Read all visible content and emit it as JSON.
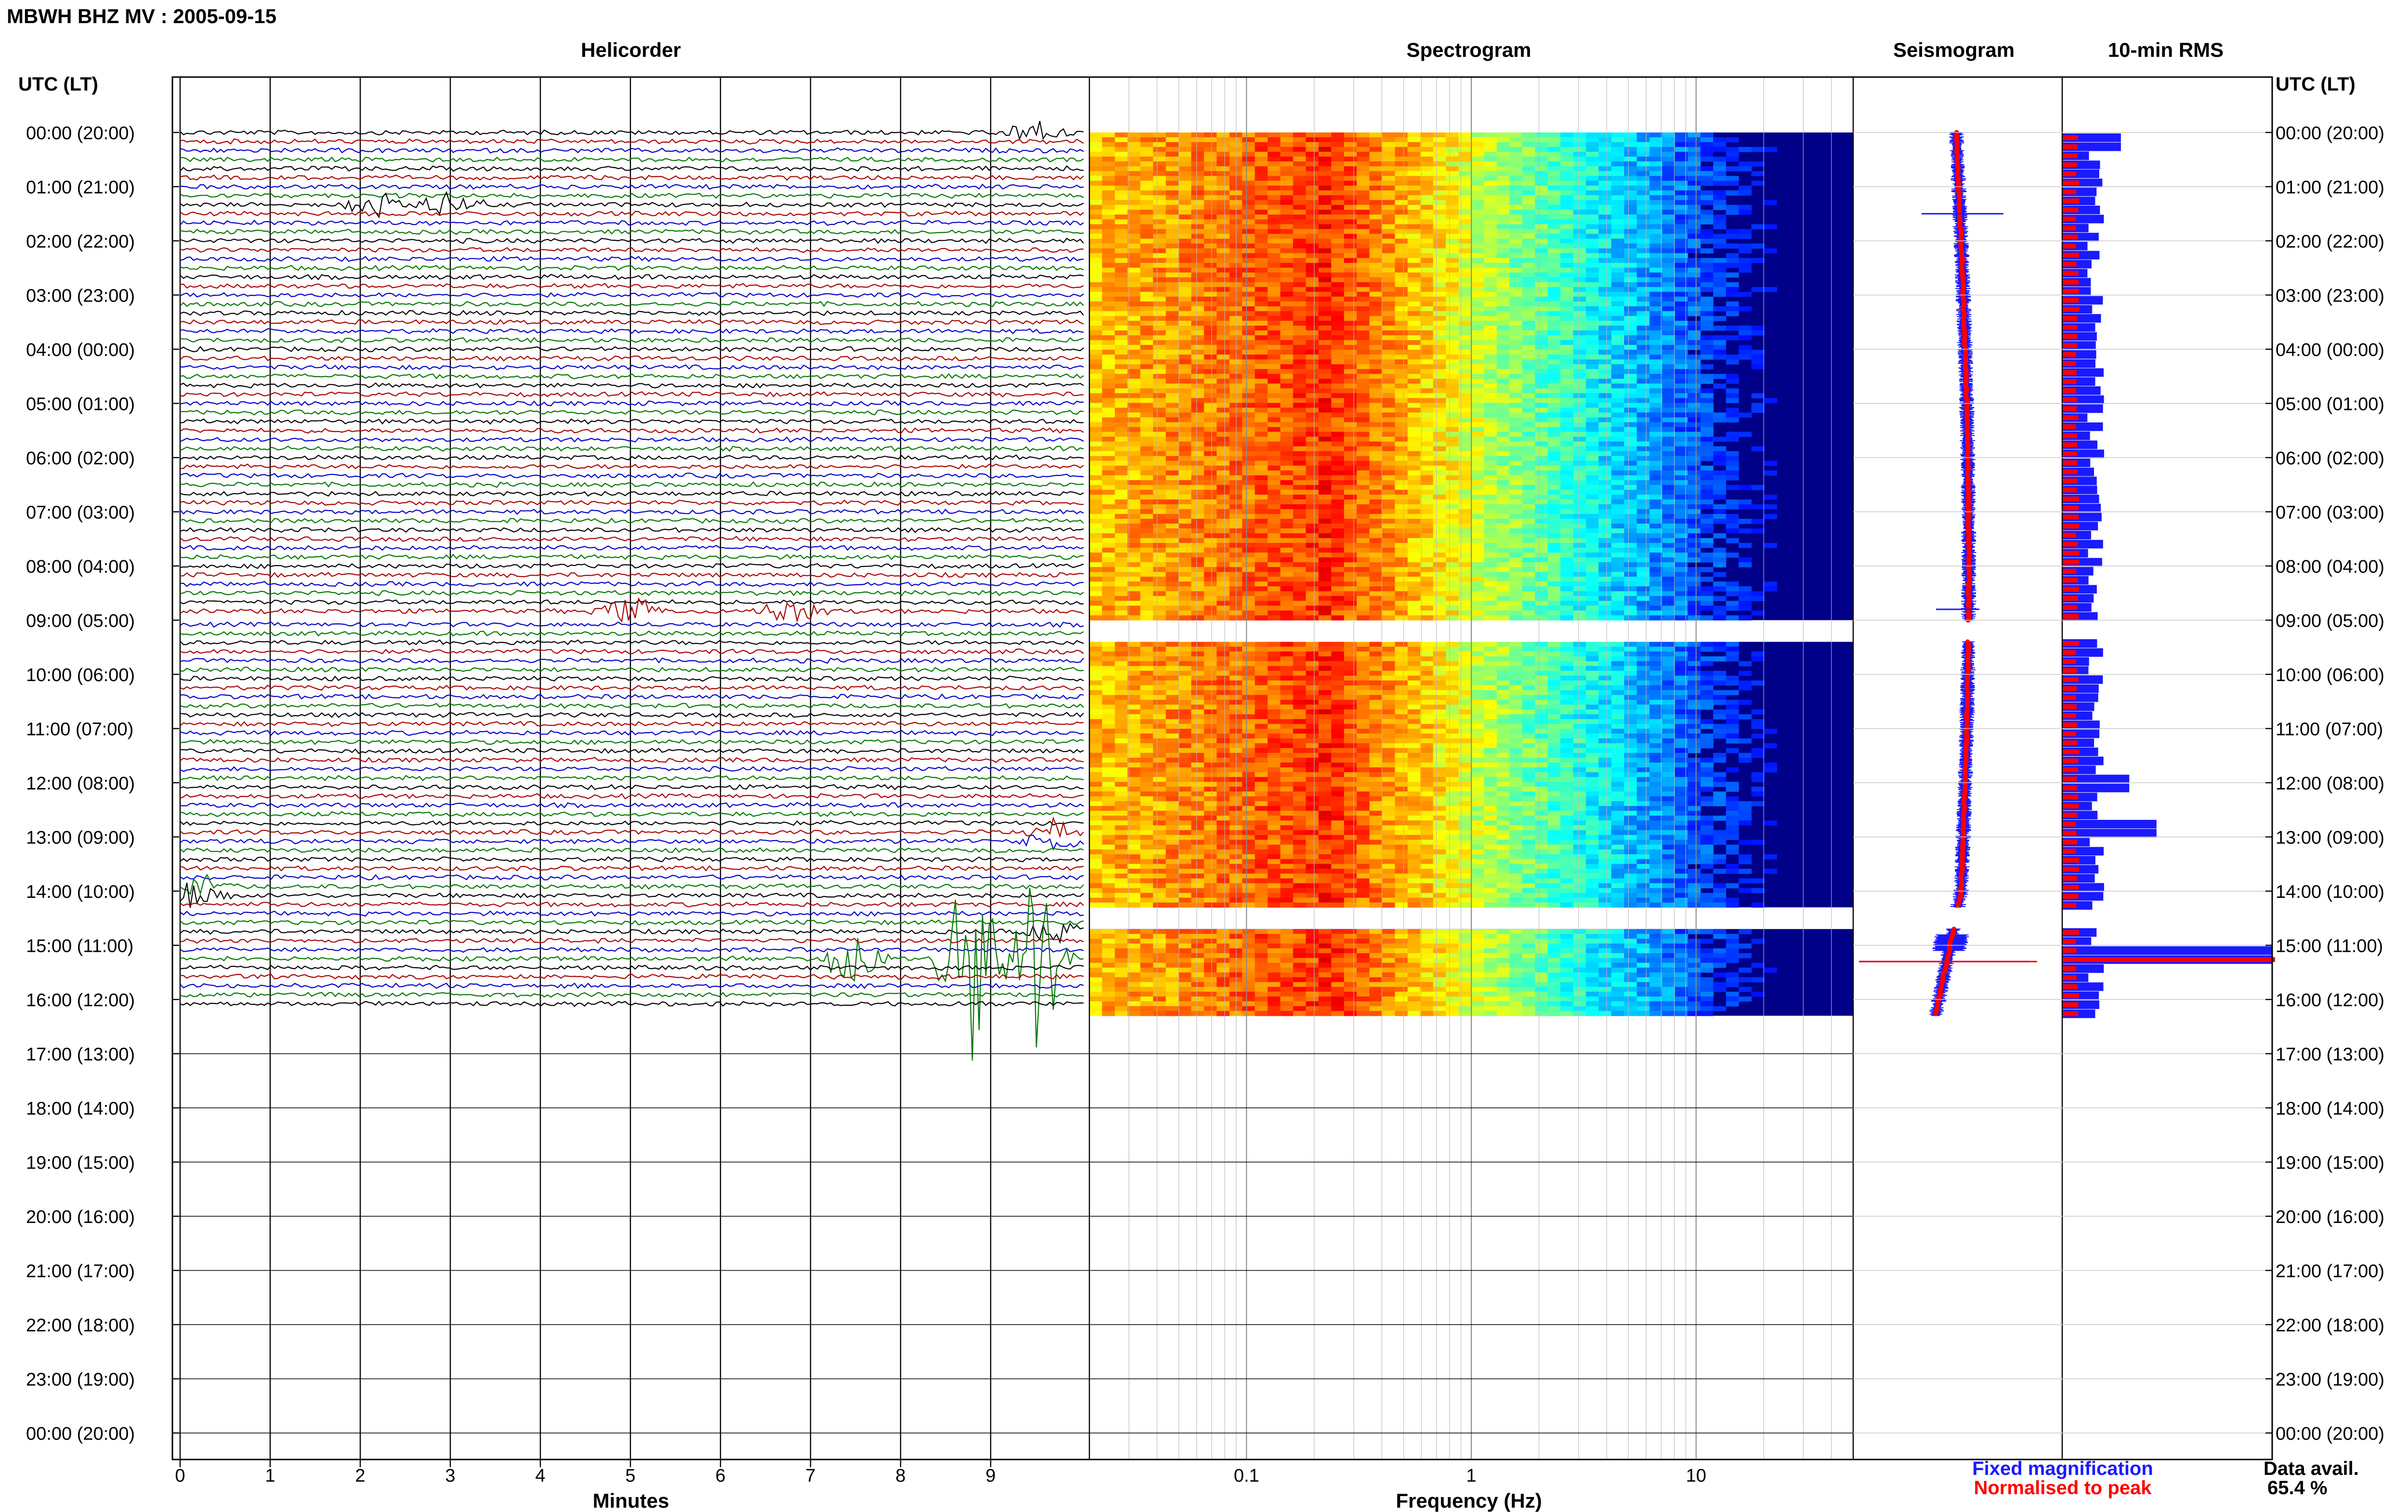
{
  "page_title": "MBWH BHZ MV : 2005-09-15",
  "panels": {
    "helicorder": "Helicorder",
    "spectrogram": "Spectrogram",
    "seismogram": "Seismogram",
    "rms": "10-min RMS"
  },
  "time_axis_title": "UTC (LT)",
  "time_labels": [
    "00:00 (20:00)",
    "01:00 (21:00)",
    "02:00 (22:00)",
    "03:00 (23:00)",
    "04:00 (00:00)",
    "05:00 (01:00)",
    "06:00 (02:00)",
    "07:00 (03:00)",
    "08:00 (04:00)",
    "09:00 (05:00)",
    "10:00 (06:00)",
    "11:00 (07:00)",
    "12:00 (08:00)",
    "13:00 (09:00)",
    "14:00 (10:00)",
    "15:00 (11:00)",
    "16:00 (12:00)",
    "17:00 (13:00)",
    "18:00 (14:00)",
    "19:00 (15:00)",
    "20:00 (16:00)",
    "21:00 (17:00)",
    "22:00 (18:00)",
    "23:00 (19:00)",
    "00:00 (20:00)"
  ],
  "legend": {
    "fixed": "Fixed magnification",
    "normalised": "Normalised to peak"
  },
  "data_avail": {
    "label": "Data avail.",
    "value": "65.4 %"
  },
  "colors": {
    "trace_cycle": [
      "#000000",
      "#aa0000",
      "#0000cc",
      "#007700"
    ],
    "fixed": "#1a1aff",
    "normalised": "#ff0000",
    "spectrogram_background": "#000088"
  },
  "chart_data": [
    {
      "type": "line",
      "name": "helicorder",
      "title": "Helicorder",
      "xlabel": "Minutes",
      "x_ticks": [
        "0",
        "1",
        "2",
        "3",
        "4",
        "5",
        "6",
        "7",
        "8",
        "9"
      ],
      "xlim": [
        0,
        10
      ],
      "rows": 144,
      "data_rows": 97,
      "gap_after_row": 53,
      "events": [
        {
          "hour": 0.0,
          "minute": 9.5,
          "amplitude": 0.4
        },
        {
          "hour": 1.4,
          "minute": 2.2,
          "amplitude": 0.5
        },
        {
          "hour": 1.4,
          "minute": 3.0,
          "amplitude": 0.4
        },
        {
          "hour": 8.8,
          "minute": 5.0,
          "amplitude": 0.4
        },
        {
          "hour": 8.8,
          "minute": 6.8,
          "amplitude": 0.6
        },
        {
          "hour": 13.0,
          "minute": 9.7,
          "amplitude": 0.3
        },
        {
          "hour": 14.0,
          "minute": 0.2,
          "amplitude": 0.4
        },
        {
          "hour": 14.8,
          "minute": 9.7,
          "amplitude": 0.4
        },
        {
          "hour": 15.3,
          "minute": 7.5,
          "amplitude": 0.9
        },
        {
          "hour": 15.3,
          "minute": 8.8,
          "amplitude": 4.0
        },
        {
          "hour": 15.3,
          "minute": 9.5,
          "amplitude": 2.5
        }
      ]
    },
    {
      "type": "heatmap",
      "name": "spectrogram",
      "title": "Spectrogram",
      "xlabel": "Frequency (Hz)",
      "x_scale": "log",
      "xlim": [
        0.02,
        50
      ],
      "x_ticks": [
        "0.1",
        "1",
        "10"
      ],
      "colormap": "jet",
      "data_blocks_hours": [
        [
          0.0,
          9.0
        ],
        [
          9.4,
          14.3
        ],
        [
          14.7,
          16.3
        ]
      ],
      "peak_frequency_hz": 0.22
    },
    {
      "type": "line",
      "name": "seismogram",
      "title": "Seismogram",
      "series": [
        {
          "name": "Fixed magnification",
          "color": "#1a1aff"
        },
        {
          "name": "Normalised to peak",
          "color": "#ff0000"
        }
      ],
      "data_blocks_hours": [
        [
          0.0,
          9.0
        ],
        [
          9.4,
          14.3
        ],
        [
          14.7,
          16.3
        ]
      ]
    },
    {
      "type": "bar",
      "name": "rms",
      "title": "10-min RMS",
      "orientation": "horizontal",
      "bin_minutes": 10,
      "data_blocks_hours": [
        [
          0.0,
          9.0
        ],
        [
          9.4,
          14.3
        ],
        [
          14.7,
          16.3
        ]
      ],
      "fixed_peaks": [
        {
          "hour": 0.1,
          "value": 0.28
        },
        {
          "hour": 12.0,
          "value": 0.32
        },
        {
          "hour": 12.8,
          "value": 0.45
        },
        {
          "hour": 15.2,
          "value": 1.0
        }
      ],
      "normalised_peaks": [
        {
          "hour": 15.2,
          "value": 1.0
        }
      ]
    }
  ]
}
